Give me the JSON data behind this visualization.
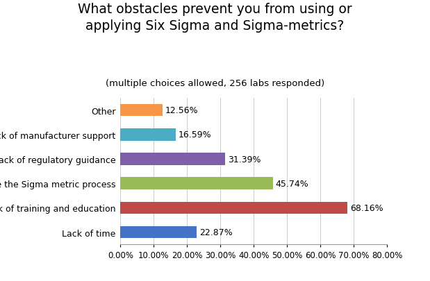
{
  "title_line1": "What obstacles prevent you from using or",
  "title_line2": "applying Six Sigma and Sigma-metrics?",
  "subtitle": "(multiple choices allowed, 256 labs responded)",
  "categories": [
    "Lack of time",
    "Lack of training and education",
    "to automate the Sigma metric process",
    "Lack of regulatory guidance",
    "Lack of manufacturer support",
    "Other"
  ],
  "values": [
    22.87,
    68.16,
    45.74,
    31.39,
    16.59,
    12.56
  ],
  "colors": [
    "#4472C4",
    "#BE4B48",
    "#9BBB59",
    "#7F5FA8",
    "#4BACC6",
    "#F79646"
  ],
  "xlim": [
    0,
    80
  ],
  "xticks": [
    0,
    10,
    20,
    30,
    40,
    50,
    60,
    70,
    80
  ],
  "bar_height": 0.5,
  "label_fontsize": 9,
  "title_fontsize": 13.5,
  "subtitle_fontsize": 9.5,
  "tick_fontsize": 8.5,
  "ytick_fontsize": 9,
  "background_color": "#FFFFFF"
}
